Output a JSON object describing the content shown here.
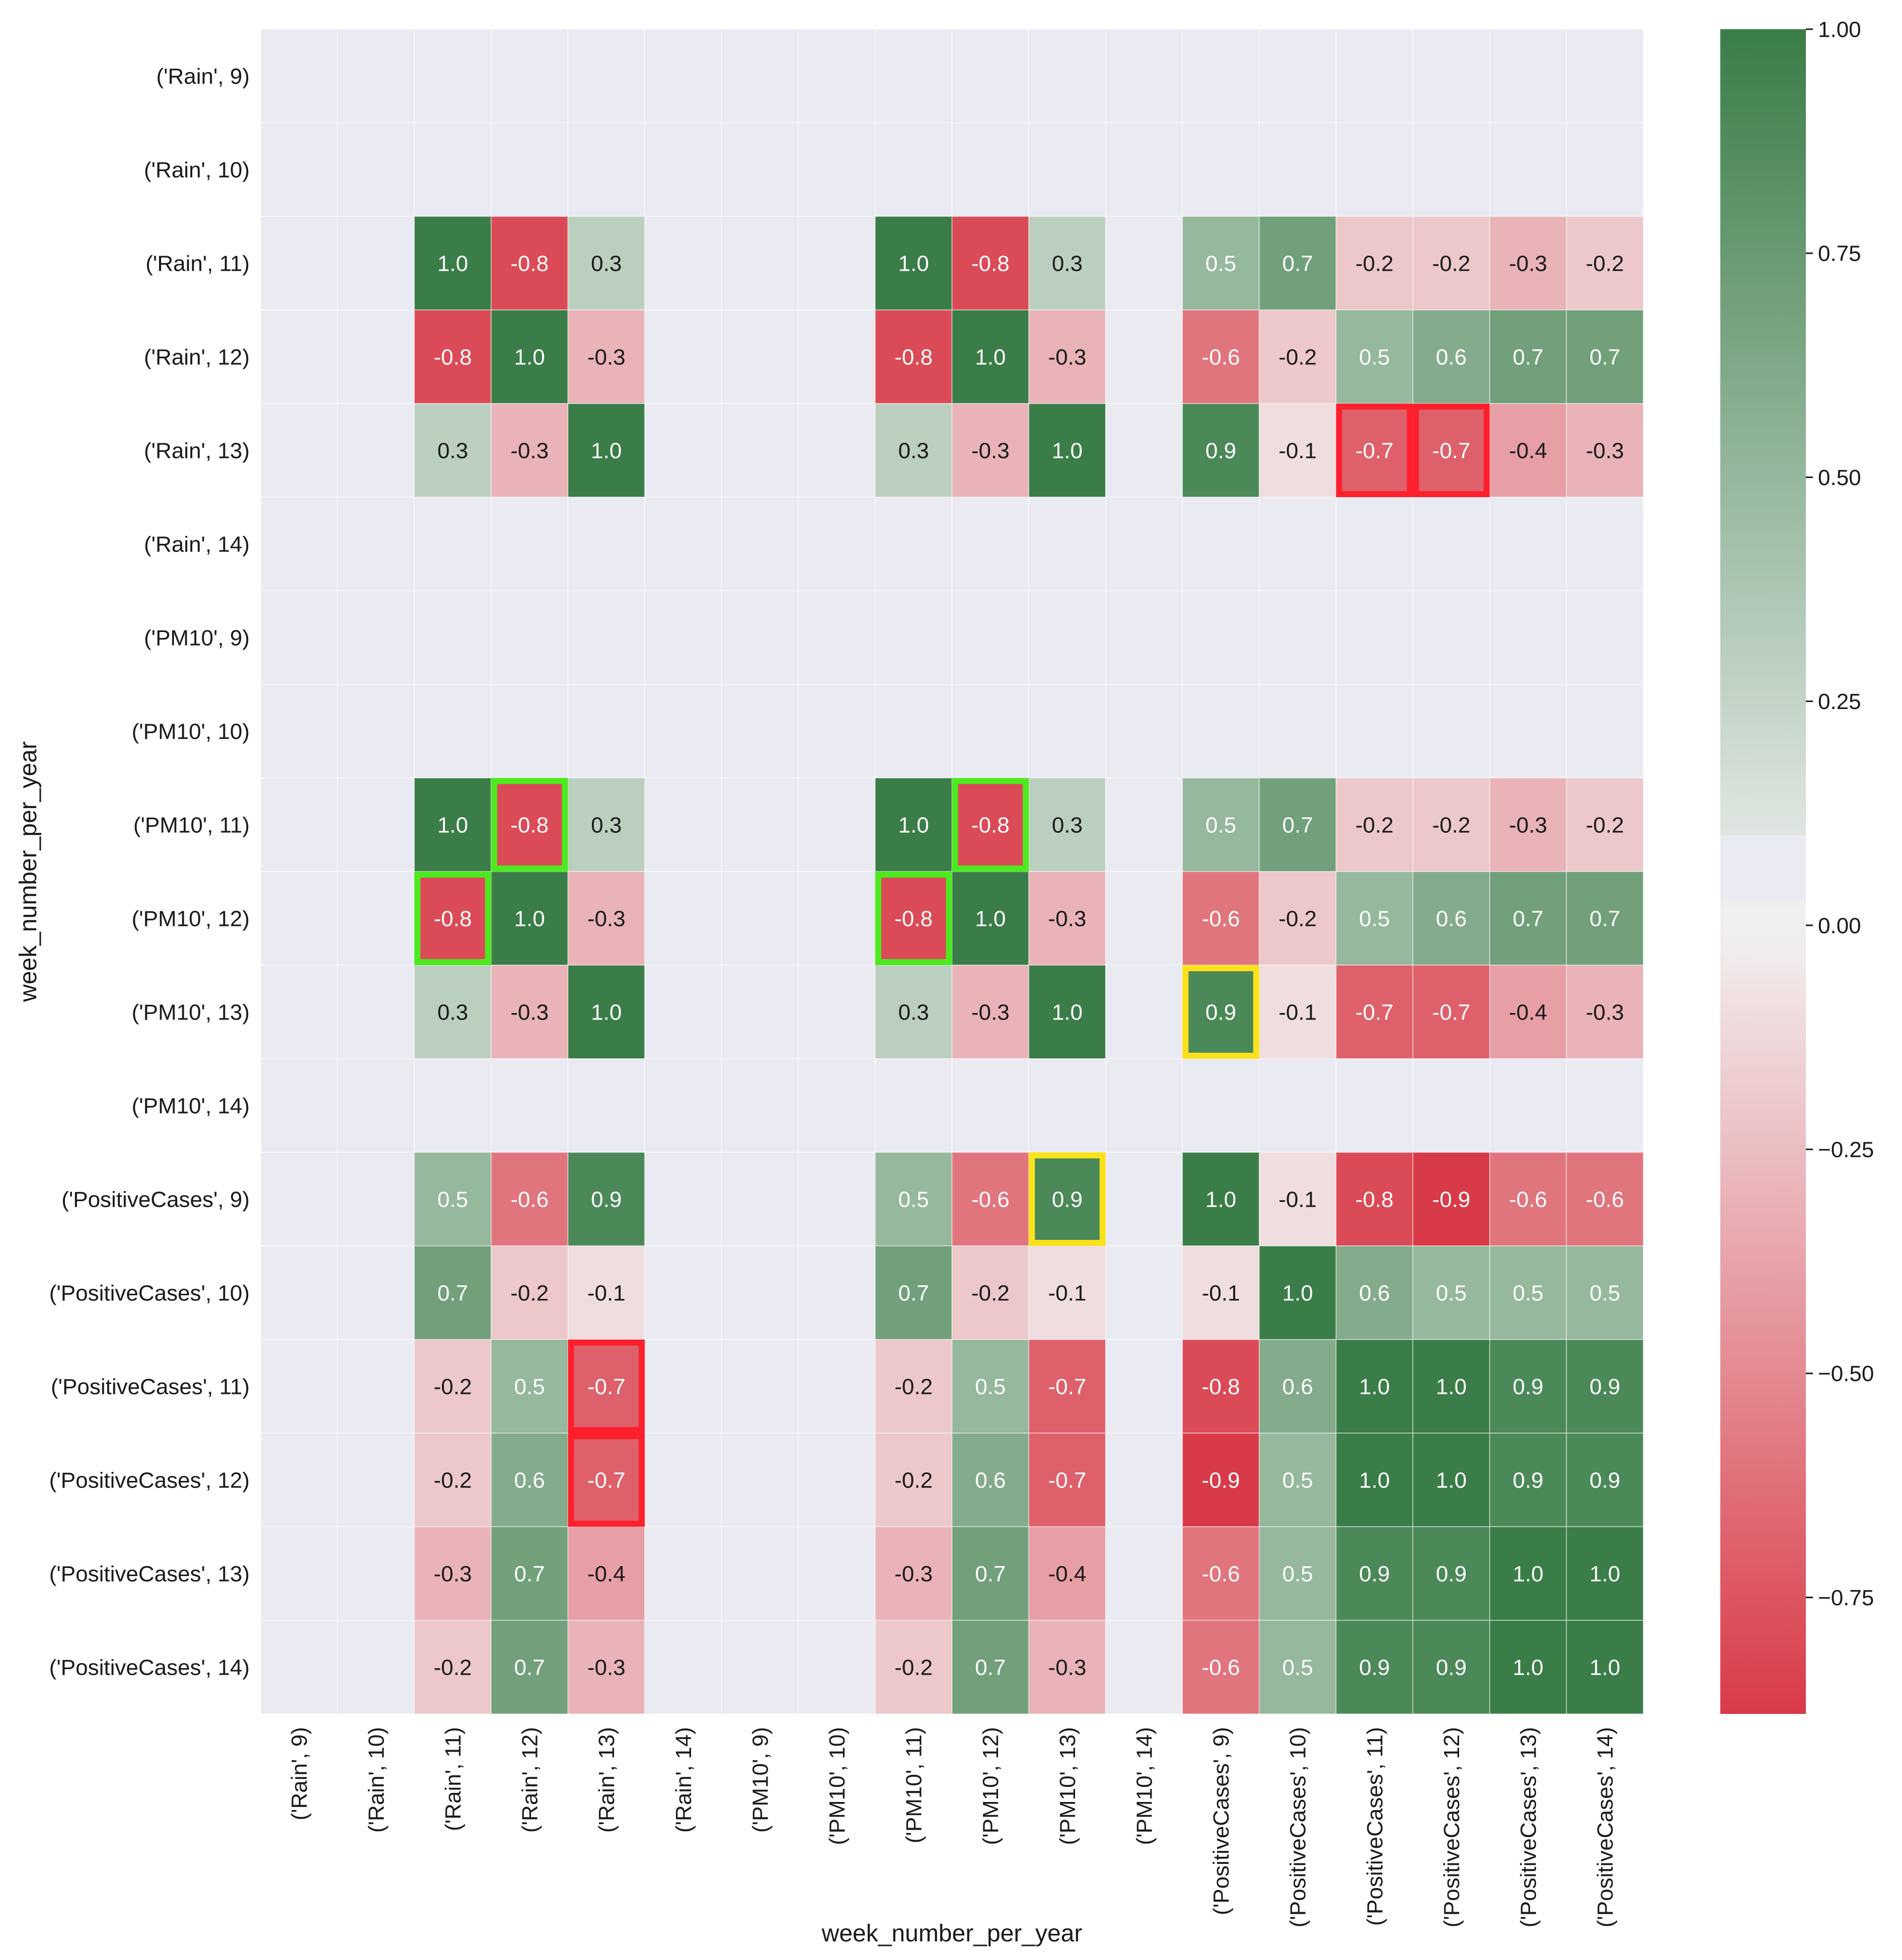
{
  "chart_data": {
    "type": "heatmap",
    "xlabel": "week_number_per_year",
    "ylabel": "week_number_per_year",
    "labels": [
      "('Rain', 9)",
      "('Rain', 10)",
      "('Rain', 11)",
      "('Rain', 12)",
      "('Rain', 13)",
      "('Rain', 14)",
      "('PM10', 9)",
      "('PM10', 10)",
      "('PM10', 11)",
      "('PM10', 12)",
      "('PM10', 13)",
      "('PM10', 14)",
      "('PositiveCases', 9)",
      "('PositiveCases', 10)",
      "('PositiveCases', 11)",
      "('PositiveCases', 12)",
      "('PositiveCases', 13)",
      "('PositiveCases', 14)"
    ],
    "values": [
      [
        null,
        null,
        null,
        null,
        null,
        null,
        null,
        null,
        null,
        null,
        null,
        null,
        null,
        null,
        null,
        null,
        null,
        null
      ],
      [
        null,
        null,
        null,
        null,
        null,
        null,
        null,
        null,
        null,
        null,
        null,
        null,
        null,
        null,
        null,
        null,
        null,
        null
      ],
      [
        null,
        null,
        1.0,
        -0.8,
        0.3,
        null,
        null,
        null,
        1.0,
        -0.8,
        0.3,
        null,
        0.5,
        0.7,
        -0.2,
        -0.2,
        -0.3,
        -0.2
      ],
      [
        null,
        null,
        -0.8,
        1.0,
        -0.3,
        null,
        null,
        null,
        -0.8,
        1.0,
        -0.3,
        null,
        -0.6,
        -0.2,
        0.5,
        0.6,
        0.7,
        0.7
      ],
      [
        null,
        null,
        0.3,
        -0.3,
        1.0,
        null,
        null,
        null,
        0.3,
        -0.3,
        1.0,
        null,
        0.9,
        -0.1,
        -0.7,
        -0.7,
        -0.4,
        -0.3
      ],
      [
        null,
        null,
        null,
        null,
        null,
        null,
        null,
        null,
        null,
        null,
        null,
        null,
        null,
        null,
        null,
        null,
        null,
        null
      ],
      [
        null,
        null,
        null,
        null,
        null,
        null,
        null,
        null,
        null,
        null,
        null,
        null,
        null,
        null,
        null,
        null,
        null,
        null
      ],
      [
        null,
        null,
        null,
        null,
        null,
        null,
        null,
        null,
        null,
        null,
        null,
        null,
        null,
        null,
        null,
        null,
        null,
        null
      ],
      [
        null,
        null,
        1.0,
        -0.8,
        0.3,
        null,
        null,
        null,
        1.0,
        -0.8,
        0.3,
        null,
        0.5,
        0.7,
        -0.2,
        -0.2,
        -0.3,
        -0.2
      ],
      [
        null,
        null,
        -0.8,
        1.0,
        -0.3,
        null,
        null,
        null,
        -0.8,
        1.0,
        -0.3,
        null,
        -0.6,
        -0.2,
        0.5,
        0.6,
        0.7,
        0.7
      ],
      [
        null,
        null,
        0.3,
        -0.3,
        1.0,
        null,
        null,
        null,
        0.3,
        -0.3,
        1.0,
        null,
        0.9,
        -0.1,
        -0.7,
        -0.7,
        -0.4,
        -0.3
      ],
      [
        null,
        null,
        null,
        null,
        null,
        null,
        null,
        null,
        null,
        null,
        null,
        null,
        null,
        null,
        null,
        null,
        null,
        null
      ],
      [
        null,
        null,
        0.5,
        -0.6,
        0.9,
        null,
        null,
        null,
        0.5,
        -0.6,
        0.9,
        null,
        1.0,
        -0.1,
        -0.8,
        -0.9,
        -0.6,
        -0.6
      ],
      [
        null,
        null,
        0.7,
        -0.2,
        -0.1,
        null,
        null,
        null,
        0.7,
        -0.2,
        -0.1,
        null,
        -0.1,
        1.0,
        0.6,
        0.5,
        0.5,
        0.5
      ],
      [
        null,
        null,
        -0.2,
        0.5,
        -0.7,
        null,
        null,
        null,
        -0.2,
        0.5,
        -0.7,
        null,
        -0.8,
        0.6,
        1.0,
        1.0,
        0.9,
        0.9
      ],
      [
        null,
        null,
        -0.2,
        0.6,
        -0.7,
        null,
        null,
        null,
        -0.2,
        0.6,
        -0.7,
        null,
        -0.9,
        0.5,
        1.0,
        1.0,
        0.9,
        0.9
      ],
      [
        null,
        null,
        -0.3,
        0.7,
        -0.4,
        null,
        null,
        null,
        -0.3,
        0.7,
        -0.4,
        null,
        -0.6,
        0.5,
        0.9,
        0.9,
        1.0,
        1.0
      ],
      [
        null,
        null,
        -0.2,
        0.7,
        -0.3,
        null,
        null,
        null,
        -0.2,
        0.7,
        -0.3,
        null,
        -0.6,
        0.5,
        0.9,
        0.9,
        1.0,
        1.0
      ]
    ],
    "colorbar": {
      "vmin": -0.88,
      "vmax": 1.0,
      "ticks": [
        1.0,
        0.75,
        0.5,
        0.25,
        0.0,
        -0.25,
        -0.5,
        -0.75
      ],
      "tick_labels": [
        "1.00",
        "0.75",
        "0.50",
        "0.25",
        "0.00",
        "−0.25",
        "−0.50",
        "−0.75"
      ],
      "negative_color": "#d93a48",
      "positive_color": "#3a7d48",
      "neutral_light_color": "#f2f2f2",
      "neutral_band_color": "#eaeaf2",
      "neutral_band": [
        0.03,
        0.1
      ]
    },
    "highlights": [
      {
        "color": "#ff1f2d",
        "row": 4,
        "col": 14,
        "rows": 1,
        "cols": 1
      },
      {
        "color": "#ff1f2d",
        "row": 4,
        "col": 15,
        "rows": 1,
        "cols": 1
      },
      {
        "color": "#ff1f2d",
        "row": 14,
        "col": 4,
        "rows": 1,
        "cols": 1
      },
      {
        "color": "#ff1f2d",
        "row": 15,
        "col": 4,
        "rows": 1,
        "cols": 1
      },
      {
        "color": "#4cea1e",
        "row": 8,
        "col": 3,
        "rows": 1,
        "cols": 1
      },
      {
        "color": "#4cea1e",
        "row": 9,
        "col": 2,
        "rows": 1,
        "cols": 1
      },
      {
        "color": "#4cea1e",
        "row": 8,
        "col": 9,
        "rows": 1,
        "cols": 1
      },
      {
        "color": "#4cea1e",
        "row": 9,
        "col": 8,
        "rows": 1,
        "cols": 1
      },
      {
        "color": "#fbe21a",
        "row": 10,
        "col": 12,
        "rows": 1,
        "cols": 1
      },
      {
        "color": "#fbe21a",
        "row": 12,
        "col": 10,
        "rows": 1,
        "cols": 1
      }
    ],
    "background_color": "#eaeaf2",
    "grid": true
  }
}
